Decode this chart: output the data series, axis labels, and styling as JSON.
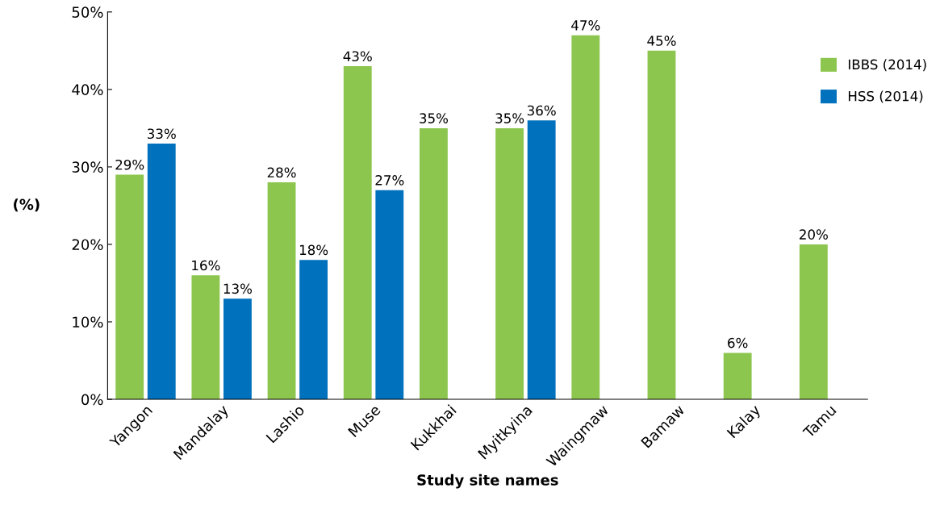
{
  "chart_data": {
    "type": "bar",
    "xlabel": "Study site names",
    "ylabel": "(%)",
    "categories": [
      "Yangon",
      "Mandalay",
      "Lashio",
      "Muse",
      "Kukkhai",
      "Myitkyina",
      "Waingmaw",
      "Bamaw",
      "Kalay",
      "Tamu"
    ],
    "series": [
      {
        "name": "IBBS (2014)",
        "color": "#8dc64f",
        "values": [
          29,
          16,
          28,
          43,
          35,
          35,
          47,
          45,
          6,
          20
        ],
        "value_labels": [
          "29%",
          "16%",
          "28%",
          "43%",
          "35%",
          "35%",
          "47%",
          "45%",
          "6%",
          "20%"
        ]
      },
      {
        "name": "HSS (2014)",
        "color": "#0071bc",
        "values": [
          33,
          13,
          18,
          27,
          null,
          36,
          null,
          null,
          null,
          null
        ],
        "value_labels": [
          "33%",
          "13%",
          "18%",
          "27%",
          null,
          "36%",
          null,
          null,
          null,
          null
        ]
      }
    ],
    "ylim": [
      0,
      50
    ],
    "yticks": [
      {
        "value": 0,
        "label": "0%"
      },
      {
        "value": 10,
        "label": "10%"
      },
      {
        "value": 20,
        "label": "20%"
      },
      {
        "value": 30,
        "label": "30%"
      },
      {
        "value": 40,
        "label": "40%"
      },
      {
        "value": 50,
        "label": "50%"
      }
    ],
    "legend": "right",
    "grid": false
  }
}
